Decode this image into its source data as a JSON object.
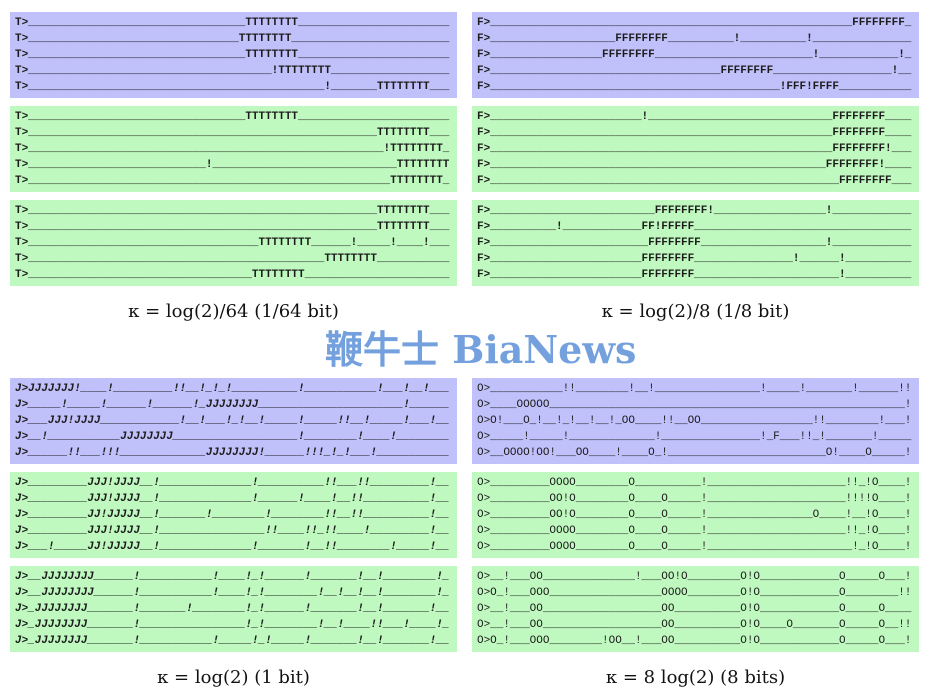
{
  "colors": {
    "blue_panel": "#c0c0fb",
    "green_panel": "#c0f9c0",
    "watermark": "#4682d2"
  },
  "watermark": "鞭牛士 BiaNews",
  "groups": [
    {
      "caption": "κ = log(2)/64 (1/64 bit)",
      "panels": [
        {
          "color": "blue",
          "prefix": "T>",
          "lines": [
            "_________________________________TTTTTTTT_______________________",
            "________________________________TTTTTTTT________________________",
            "_________________________________TTTTTTTT_______________________",
            "_____________________________________!TTTTTTTT__________________",
            "_____________________________________________!_______TTTTTTTT___"
          ]
        },
        {
          "color": "green",
          "prefix": "T>",
          "lines": [
            "_________________________________TTTTTTTT_______________________",
            "_____________________________________________________TTTTTTTT___",
            "______________________________________________________!TTTTTTTT_",
            "___________________________!____________________________TTTTTTTT",
            "_______________________________________________________TTTTTTTT_"
          ]
        },
        {
          "color": "green",
          "prefix": "T>",
          "lines": [
            "_____________________________________________________TTTTTTTT___",
            "_____________________________________________________TTTTTTTT___",
            "___________________________________TTTTTTTT______!_____!____!___",
            "_____________________________________________TTTTTTTT___________",
            "__________________________________TTTTTTTT______________________"
          ]
        }
      ]
    },
    {
      "caption": "κ = log(2)/8 (1/8 bit)",
      "panels": [
        {
          "color": "blue",
          "prefix": "F>",
          "lines": [
            "_______________________________________________________FFFFFFFF_",
            "___________________FFFFFFFF__________!__________!_______________",
            "_________________FFFFFFFF________________________!____________!_",
            "___________________________________FFFFFFFF__________________!__",
            "____________________________________________!FFF!FFFF___________"
          ]
        },
        {
          "color": "green",
          "prefix": "F>",
          "lines": [
            "_______________________!____________________________FFFFFFFF____",
            "____________________________________________________FFFFFFFF____",
            "____________________________________________________FFFFFFFF!___",
            "___________________________________________________FFFFFFFF!____",
            "_____________________________________________________FFFFFFFF___"
          ]
        },
        {
          "color": "green",
          "prefix": "F>",
          "lines": [
            "_________________________FFFFFFFF!_________________!____________",
            "__________!____________FF!FFFFF_________________________________",
            "________________________FFFFFFFF___________________!____________",
            "_______________________FFFFFFFF_______________!______!__________",
            "_______________________FFFFFFFF______________________!__________"
          ]
        }
      ]
    },
    {
      "caption": "κ = log(2) (1 bit)",
      "panels": [
        {
          "color": "blue",
          "prefix": "J>",
          "lines": [
            "JJJJJJJ!____!_________!!__!_!_!__________!___________!___!__!___",
            "_____!_____!______!______!_JJJJJJJJ______________________!______",
            "___JJJ!JJJJ____________!__!___!_!__!_____!_____!!__!_____!___!__",
            "__!___________JJJJJJJJ___________________!________!____!________",
            "______!!___!!!_____________JJJJJJJJ!______!!!_!_!___!___________"
          ]
        },
        {
          "color": "green",
          "prefix": "J>",
          "lines": [
            "_________JJJ!JJJJ__!______________!__________!!___!!_________!__",
            "_________JJJ!JJJJ__!______________!______!____!__!!__________!__",
            "_________JJ!JJJJJ__!_______!________!________!!__!!__________!__",
            "_________JJJ!JJJJ__!________________!!____!!_!!____!_________!__",
            "___!_____JJ!JJJJJ__!______________!_______!__!!________!_____!__"
          ]
        },
        {
          "color": "green",
          "prefix": "J>",
          "lines": [
            "__JJJJJJJJ______!___________!____!_!______!_______!__!________!_",
            "__JJJJJJJJ______!___________!____!_!________!__!__!__!________!_",
            "_JJJJJJJJ_______!_______!________!_!______!_______!__!_______!__",
            "_JJJJJJJJ_______!________________!_!________!__!____!!___!____!_",
            "_JJJJJJJJ_______!___________!_____!_!_____!_______!__!_______!__"
          ]
        }
      ]
    },
    {
      "caption": "κ = 8 log(2) (8 bits)",
      "panels": [
        {
          "color": "blue",
          "prefix": "O>",
          "lines": [
            "___________!!________!__!________________!_____!_______!______!!",
            "____OOOOO______________________________________________________!",
            "O!___O_!__!_!__!__!_OO____!!__OO_________________!!________!___!",
            "_____!_____!_____________!_______________!_F___!!_!_______!_____",
            "__OOOO!OO!___OO____!____O_!________________________O!____O_____!"
          ]
        },
        {
          "color": "green",
          "prefix": "O>",
          "lines": [
            "_________OOOO________O__________!_____________________!!_!O____!",
            "_________OO!O________O____O_____!_____________________!!!!O____!",
            "_________OO!O________O____O_____!________________O____!__!O____!",
            "_________OOOO________O____O_____!_____________________!!_!O____!",
            "_________OOOO________O____O_____!______________________!_!O____!"
          ]
        },
        {
          "color": "green",
          "prefix": "O>",
          "lines": [
            "__!___OO______________!___OO!O________O!O____________O_____O___!",
            "O_!___OOO_________________OOOO________O!O____________O________!!",
            "__!___OO__________________OO__________O!O____________O_____O____",
            "__!___OO__________________OO__________O!O____O_______O_____O__!!",
            "O_!___OOO________!OO__!___OO__________O!O____________O_____O___!"
          ]
        }
      ]
    }
  ]
}
